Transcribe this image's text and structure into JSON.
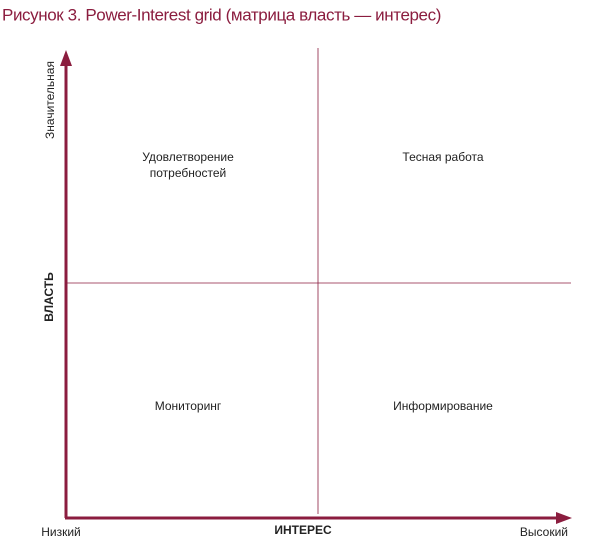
{
  "title": "Рисунок 3. Power-Interest grid (матрица власть — интерес)",
  "y_axis": {
    "label": "ВЛАСТЬ",
    "high": "Значительная"
  },
  "x_axis": {
    "label": "ИНТЕРЕС",
    "low": "Низкий",
    "high": "Высокий"
  },
  "quadrants": [
    {
      "lines": [
        "Удовлетворение",
        "потребностей"
      ]
    },
    {
      "lines": [
        "Тесная работа"
      ]
    },
    {
      "lines": [
        "Мониторинг"
      ]
    },
    {
      "lines": [
        "Информирование"
      ]
    }
  ]
}
